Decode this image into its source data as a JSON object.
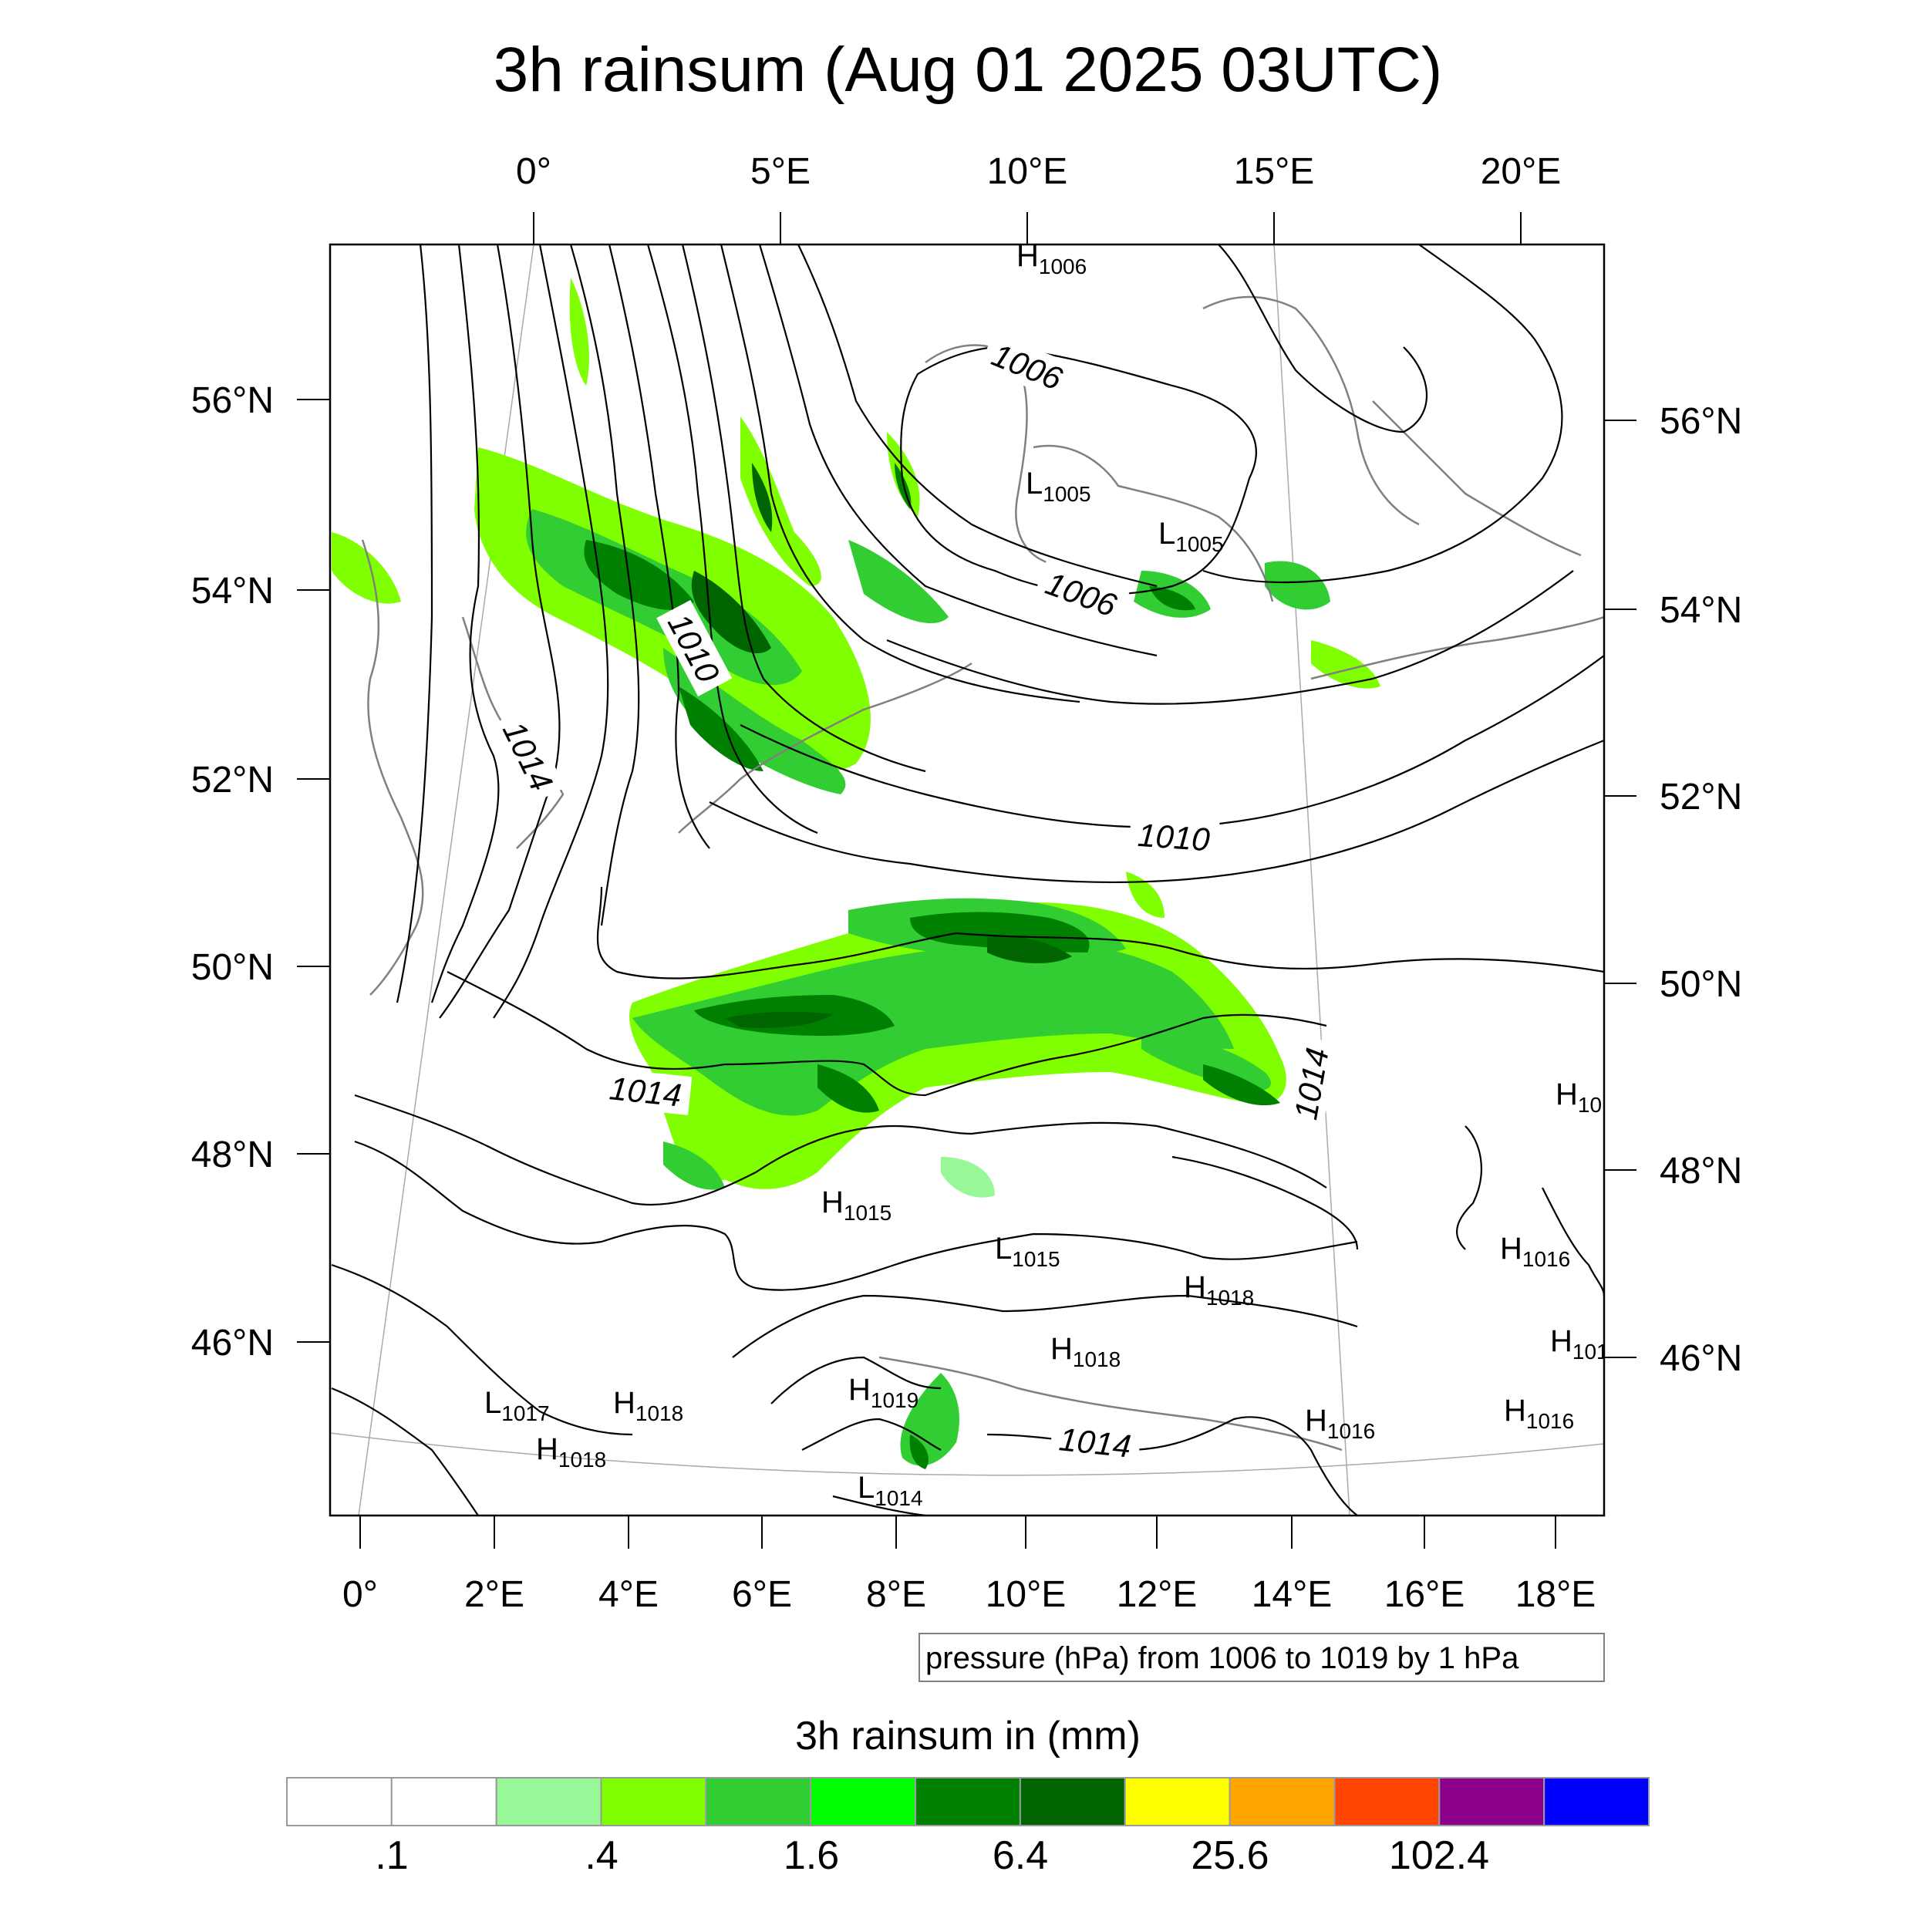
{
  "title": "3h rainsum (Aug 01 2025 03UTC)",
  "top_lon_ticks": [
    "0°",
    "5°E",
    "10°E",
    "15°E",
    "20°E"
  ],
  "bottom_lon_ticks": [
    "0°",
    "2°E",
    "4°E",
    "6°E",
    "8°E",
    "10°E",
    "12°E",
    "14°E",
    "16°E",
    "18°E"
  ],
  "left_lat_ticks": [
    "56°N",
    "54°N",
    "52°N",
    "50°N",
    "48°N",
    "46°N"
  ],
  "right_lat_ticks": [
    "56°N",
    "54°N",
    "52°N",
    "50°N",
    "48°N",
    "46°N"
  ],
  "contour_labels": [
    "1006",
    "1006",
    "1010",
    "1010",
    "1014",
    "1014",
    "1014",
    "1014"
  ],
  "pressure_centers": [
    {
      "type": "H",
      "value": "1006"
    },
    {
      "type": "L",
      "value": "1005"
    },
    {
      "type": "L",
      "value": "1005"
    },
    {
      "type": "H",
      "value": "10"
    },
    {
      "type": "H",
      "value": "1015"
    },
    {
      "type": "L",
      "value": "1015"
    },
    {
      "type": "H",
      "value": "1018"
    },
    {
      "type": "H",
      "value": "1016"
    },
    {
      "type": "H",
      "value": "1018"
    },
    {
      "type": "H",
      "value": "101"
    },
    {
      "type": "L",
      "value": "1017"
    },
    {
      "type": "H",
      "value": "1018"
    },
    {
      "type": "H",
      "value": "1019"
    },
    {
      "type": "H",
      "value": "1018"
    },
    {
      "type": "H",
      "value": "1016"
    },
    {
      "type": "H",
      "value": "1016"
    },
    {
      "type": "L",
      "value": "1014"
    }
  ],
  "contour_note": "pressure (hPa) from 1006 to 1019 by 1 hPa",
  "colorbar": {
    "title": "3h rainsum in (mm)",
    "labels": [
      ".1",
      ".4",
      "1.6",
      "6.4",
      "25.6",
      "102.4"
    ],
    "colors": [
      "#ffffff",
      "#ffffff",
      "#98f898",
      "#80ff00",
      "#32cd32",
      "#00ff00",
      "#008000",
      "#006400",
      "#ffff00",
      "#ffa500",
      "#ff4500",
      "#8b008b",
      "#0000ff"
    ]
  }
}
